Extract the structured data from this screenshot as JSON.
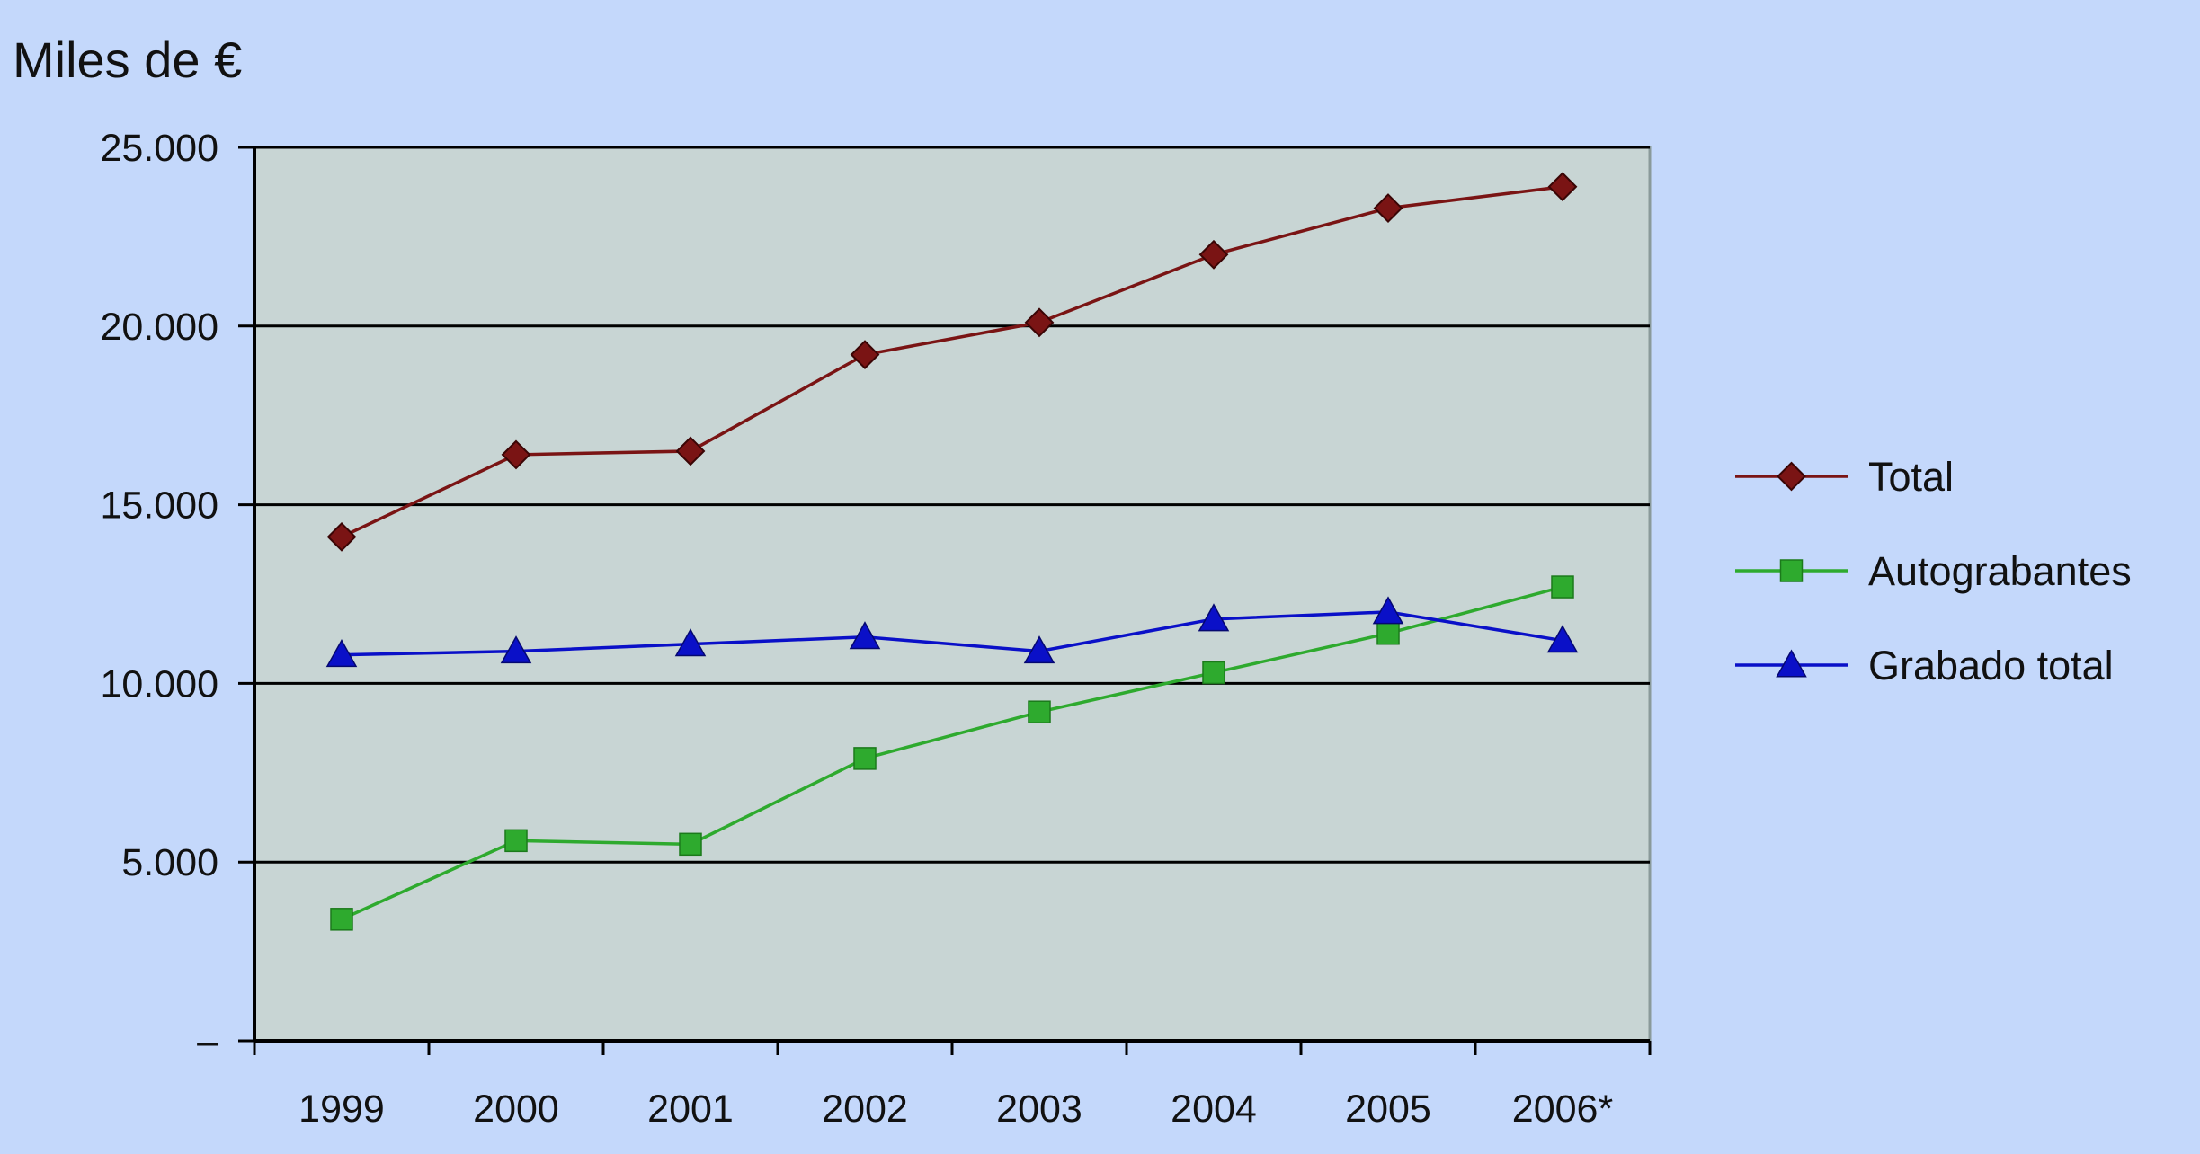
{
  "chart_data": {
    "type": "line",
    "title": "",
    "ylabel": "Miles de €",
    "xlabel": "",
    "categories": [
      "1999",
      "2000",
      "2001",
      "2002",
      "2003",
      "2004",
      "2005",
      "2006*"
    ],
    "ylim": [
      0,
      25000
    ],
    "yticks": [
      0,
      5000,
      10000,
      15000,
      20000,
      25000
    ],
    "ytick_labels": [
      "–",
      "5.000",
      "10.000",
      "15.000",
      "20.000",
      "25.000"
    ],
    "grid": "horizontal",
    "legend_position": "right",
    "series": [
      {
        "name": "Total",
        "marker": "diamond",
        "color": "#7a1414",
        "values": [
          14100,
          16400,
          16500,
          19200,
          20100,
          22000,
          23300,
          23900
        ]
      },
      {
        "name": "Autograbantes",
        "marker": "square",
        "color": "#2eaa2e",
        "values": [
          3400,
          5600,
          5500,
          7900,
          9200,
          10300,
          11400,
          12700
        ]
      },
      {
        "name": "Grabado total",
        "marker": "triangle",
        "color": "#0a10c8",
        "values": [
          10800,
          10900,
          11100,
          11300,
          10900,
          11800,
          12000,
          11200
        ]
      }
    ]
  },
  "colors": {
    "background": "#c4d8fb",
    "plot_area": "#c8d5d4",
    "grid": "#000000"
  }
}
